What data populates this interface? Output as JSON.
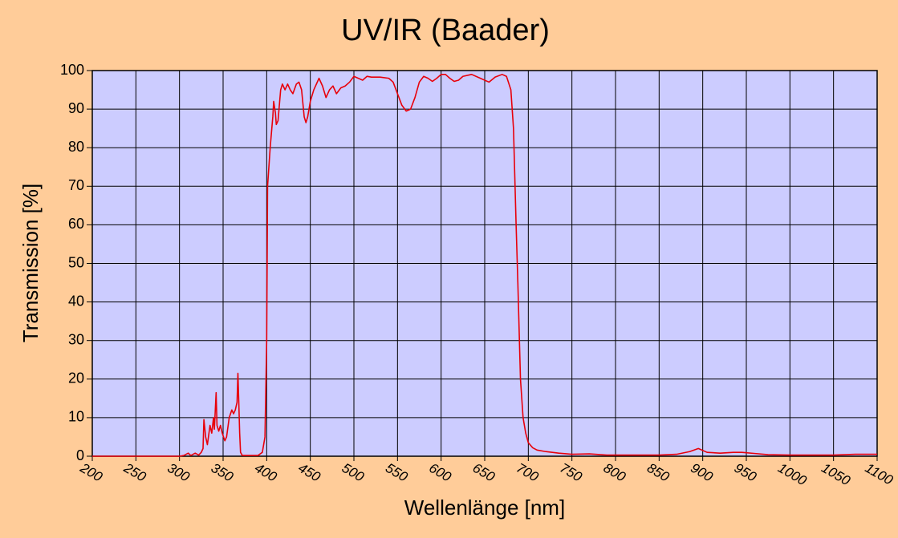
{
  "chart_data": {
    "type": "line",
    "title": "UV/IR (Baader)",
    "x_label": "Wellenlänge [nm]",
    "y_label": "Transmission [%]",
    "color": "#e8000a",
    "grid": true,
    "xlim": [
      200,
      1100
    ],
    "xticks": [
      200,
      250,
      300,
      350,
      400,
      450,
      500,
      550,
      600,
      650,
      700,
      750,
      800,
      850,
      900,
      950,
      1000,
      1050,
      1100
    ],
    "ylim": [
      0,
      100
    ],
    "yticks": [
      0,
      10,
      20,
      30,
      40,
      50,
      60,
      70,
      80,
      90,
      100
    ],
    "x": [
      200,
      300,
      305,
      310,
      313,
      318,
      322,
      325,
      327,
      328,
      330,
      332,
      335,
      337,
      339,
      340,
      342,
      343,
      345,
      347,
      349,
      352,
      354,
      357,
      360,
      362,
      364,
      366,
      367,
      368,
      369,
      370,
      372,
      390,
      395,
      398,
      400,
      401,
      404,
      407,
      408,
      410,
      411,
      413,
      416,
      418,
      421,
      424,
      427,
      430,
      434,
      437,
      440,
      443,
      445,
      447,
      450,
      454,
      460,
      464,
      468,
      472,
      476,
      480,
      485,
      490,
      495,
      500,
      505,
      510,
      515,
      520,
      530,
      540,
      545,
      550,
      555,
      560,
      565,
      570,
      575,
      580,
      585,
      590,
      595,
      600,
      605,
      610,
      615,
      620,
      625,
      635,
      645,
      655,
      662,
      670,
      675,
      680,
      683,
      686,
      688,
      691,
      694,
      697,
      700,
      705,
      710,
      720,
      735,
      750,
      770,
      790,
      800,
      850,
      870,
      885,
      895,
      905,
      920,
      935,
      945,
      960,
      975,
      1000,
      1050,
      1075,
      1100
    ],
    "values": [
      0,
      0,
      0.2,
      0.8,
      0.2,
      0.8,
      0.3,
      1,
      2,
      9.5,
      5,
      3,
      8,
      6,
      10,
      7,
      16.5,
      8,
      6.5,
      8,
      6,
      4,
      5,
      10,
      12,
      11,
      12,
      14,
      21.5,
      14,
      6,
      1,
      0.2,
      0.2,
      1,
      5,
      30,
      70,
      80,
      88,
      92,
      89,
      86,
      87,
      95,
      96.5,
      95,
      96.5,
      95,
      94,
      96.5,
      97,
      95,
      88,
      86.5,
      88,
      92,
      95,
      98,
      96,
      93,
      95,
      96,
      94,
      95.5,
      96,
      97,
      98.5,
      98,
      97.5,
      98.5,
      98.3,
      98.3,
      98,
      97,
      94,
      91,
      89.5,
      90,
      93,
      97,
      98.5,
      98,
      97.2,
      98,
      99,
      99,
      98,
      97.2,
      97.5,
      98.5,
      99,
      98,
      97,
      98.3,
      99,
      98.5,
      95,
      85,
      60,
      45,
      20,
      10,
      6,
      3.5,
      2.2,
      1.6,
      1.2,
      0.8,
      0.5,
      0.6,
      0.3,
      0.3,
      0.3,
      0.5,
      1.2,
      2,
      1,
      0.8,
      1,
      1,
      0.7,
      0.4,
      0.3,
      0.3,
      0.5,
      0.5
    ]
  }
}
